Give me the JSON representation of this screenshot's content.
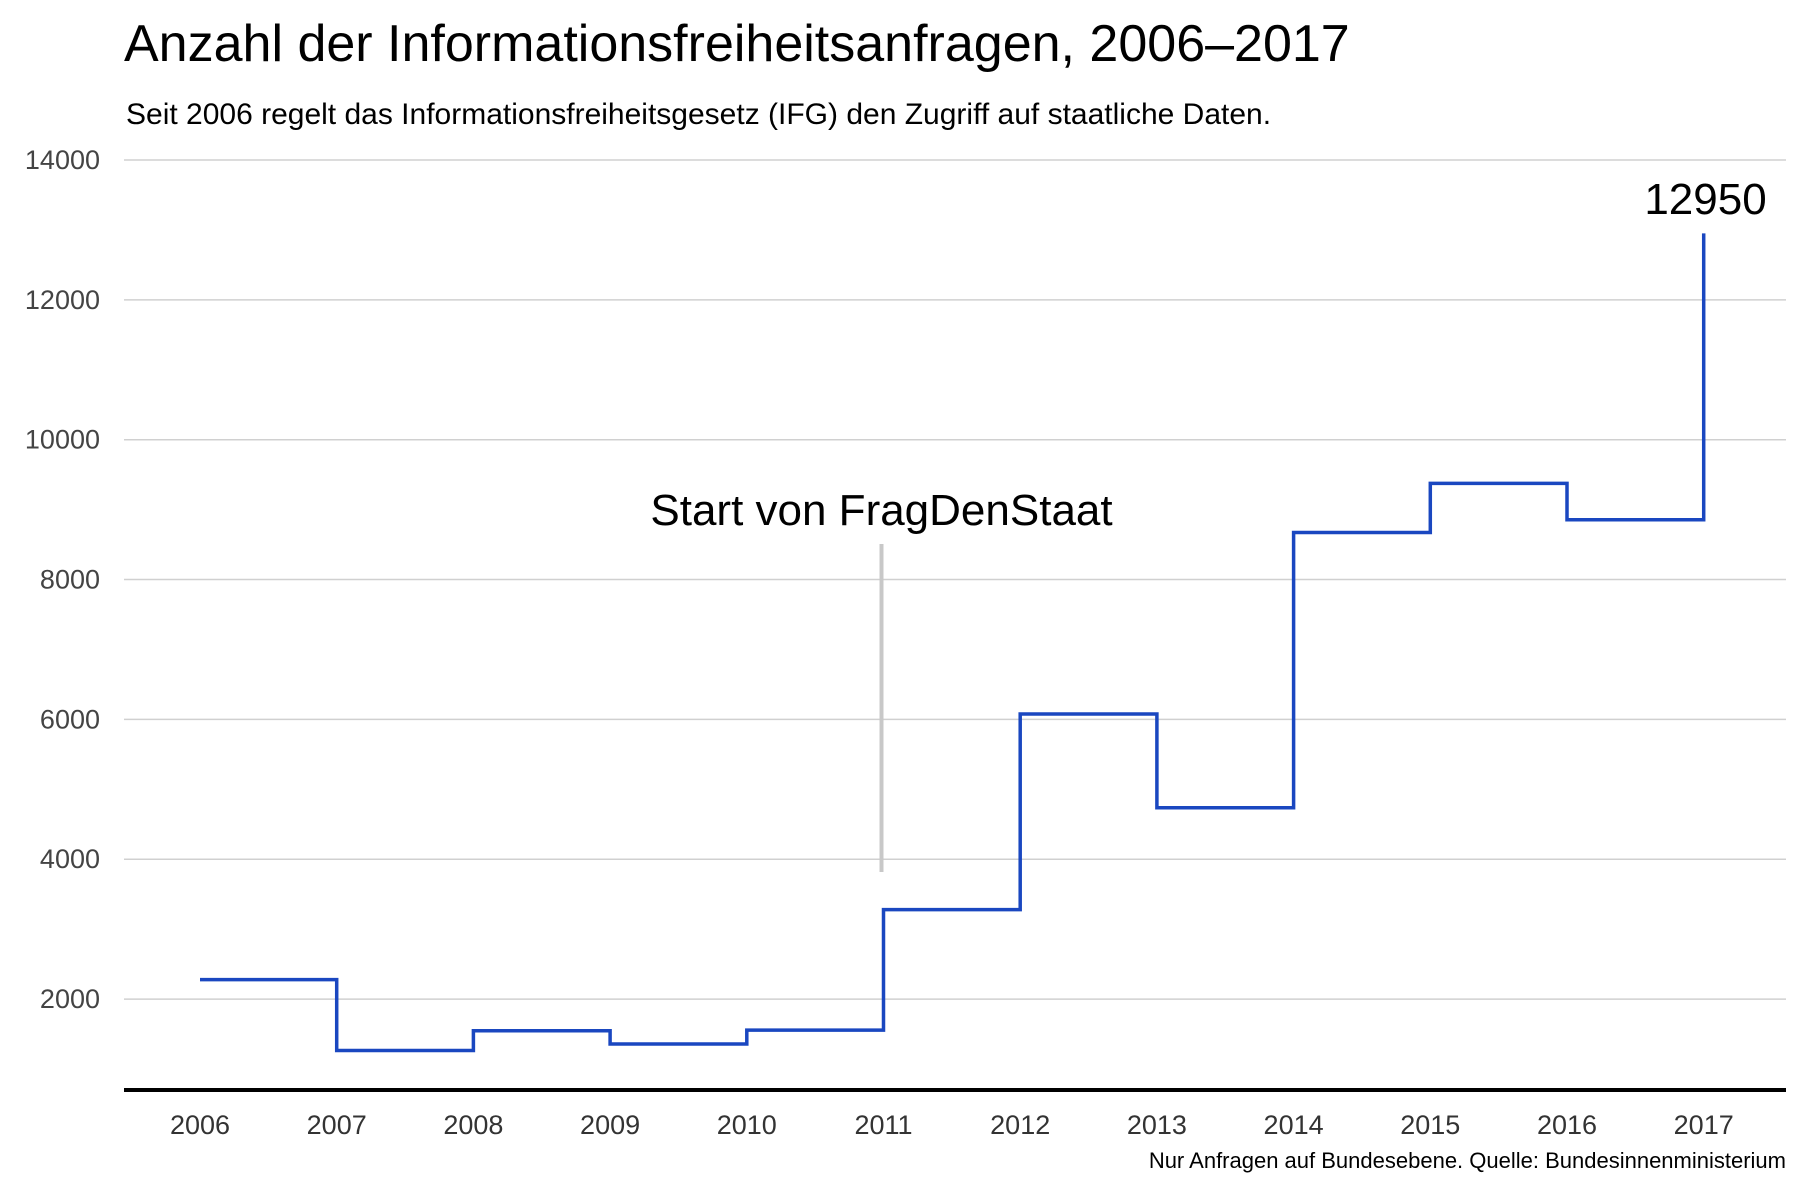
{
  "title": "Anzahl der Informationsfreiheitsanfragen, 2006–2017",
  "subtitle": "Seit 2006 regelt das Informationsfreiheitsgesetz (IFG) den Zugriff auf staatliche Daten.",
  "source": "Nur Anfragen auf Bundesebene. Quelle: Bundesinnenministerium",
  "chart_data": {
    "type": "line",
    "step": true,
    "x": [
      "2006",
      "2007",
      "2008",
      "2009",
      "2010",
      "2011",
      "2012",
      "2013",
      "2014",
      "2015",
      "2016",
      "2017"
    ],
    "series": [
      {
        "values": [
          2278,
          1265,
          1548,
          1358,
          1556,
          3280,
          6077,
          4736,
          8673,
          9376,
          8855,
          12950
        ],
        "color": "#1a47c0"
      }
    ],
    "yticks": [
      2000,
      4000,
      6000,
      8000,
      10000,
      12000,
      14000
    ],
    "ylim": [
      700,
      14000
    ],
    "grid": true,
    "annotations": [
      {
        "x": "2011",
        "label": "Start von FragDenStaat",
        "color": "#c8c8c8"
      },
      {
        "x": "2017",
        "label": "12950"
      }
    ]
  }
}
